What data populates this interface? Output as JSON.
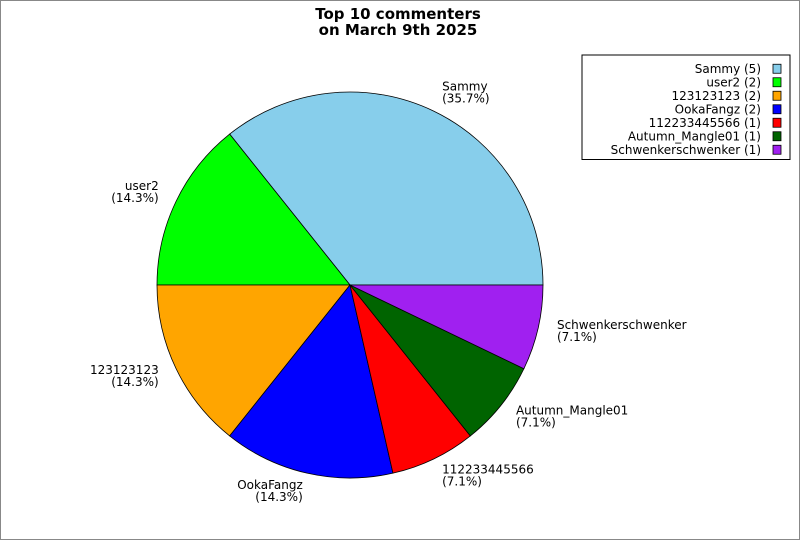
{
  "chart_data": {
    "type": "pie",
    "title": [
      "Top 10 commenters",
      "on March 9th 2025"
    ],
    "categories": [
      "Sammy",
      "user2",
      "123123123",
      "OokaFangz",
      "112233445566",
      "Autumn_Mangle01",
      "Schwenkerschwenker"
    ],
    "values": [
      5,
      2,
      2,
      2,
      1,
      1,
      1
    ],
    "percent_labels": [
      "(35.7%)",
      "(14.3%)",
      "(14.3%)",
      "(14.3%)",
      "(7.1%)",
      "(7.1%)",
      "(7.1%)"
    ],
    "legend_labels": [
      "Sammy (5)",
      "user2 (2)",
      "123123123 (2)",
      "OokaFangz (2)",
      "112233445566 (1)",
      "Autumn_Mangle01 (1)",
      "Schwenkerschwenker (1)"
    ],
    "colors": [
      "#87ceeb",
      "#00ff00",
      "#ffa500",
      "#0000ff",
      "#ff0000",
      "#006400",
      "#a020f0"
    ],
    "legend": "top-right"
  }
}
